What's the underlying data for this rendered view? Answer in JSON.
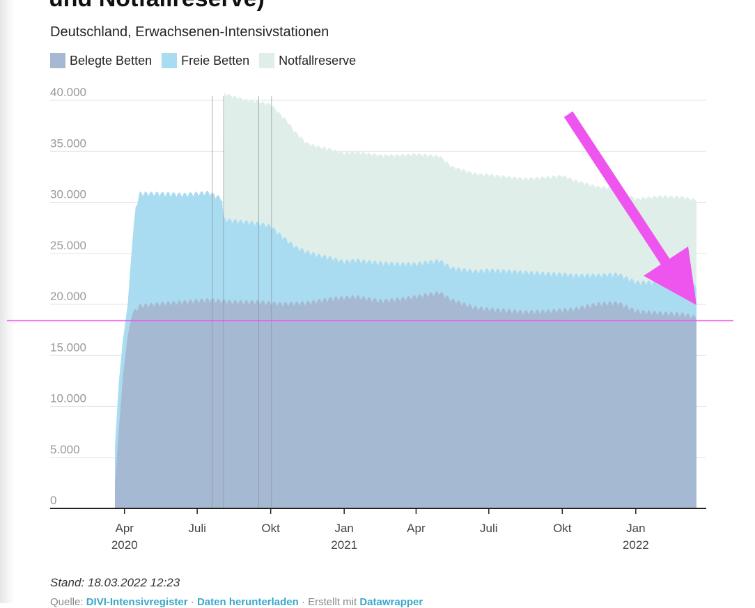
{
  "header": {
    "title": "und Notfallreserve)",
    "subtitle": "Deutschland, Erwachsenen-Intensivstationen"
  },
  "legend": {
    "belegt": "Belegte Betten",
    "frei": "Freie Betten",
    "reserve": "Notfallreserve"
  },
  "colors": {
    "belegt": "#a6b9d2",
    "frei": "#a9dcf1",
    "reserve": "#dfeee9",
    "annotation": "#ee55ee",
    "grid": "#e3e3e3",
    "event_line": "#8a9296"
  },
  "footer": {
    "stand": "Stand: 18.03.2022 12:23",
    "source_prefix": "Quelle: ",
    "source_link": "DIVI-Intensivregister",
    "sep": " · ",
    "download_link": "Daten herunterladen",
    "created_prefix": " · Erstellt mit ",
    "tool_link": "Datawrapper"
  },
  "chart_data": {
    "type": "area",
    "stacked": true,
    "xlabel": "",
    "ylabel": "",
    "x_range": [
      "2020-03-20",
      "2022-03-18"
    ],
    "ylim": [
      0,
      40000
    ],
    "y_ticks": [
      0,
      5000,
      10000,
      15000,
      20000,
      25000,
      30000,
      35000,
      40000
    ],
    "y_tick_labels": [
      "0",
      "5.000",
      "10.000",
      "15.000",
      "20.000",
      "25.000",
      "30.000",
      "35.000",
      "40.000"
    ],
    "x_ticks": [
      {
        "date": "2020-04-01",
        "label": "Apr",
        "year": "2020"
      },
      {
        "date": "2020-07-01",
        "label": "Juli",
        "year": ""
      },
      {
        "date": "2020-10-01",
        "label": "Okt",
        "year": ""
      },
      {
        "date": "2021-01-01",
        "label": "Jan",
        "year": "2021"
      },
      {
        "date": "2021-04-01",
        "label": "Apr",
        "year": ""
      },
      {
        "date": "2021-07-01",
        "label": "Juli",
        "year": ""
      },
      {
        "date": "2021-10-01",
        "label": "Okt",
        "year": ""
      },
      {
        "date": "2022-01-01",
        "label": "Jan",
        "year": "2022"
      }
    ],
    "event_lines": [
      "2020-07-20",
      "2020-08-03",
      "2020-09-16",
      "2020-10-02"
    ],
    "reference_line": 18400,
    "legend_position": "top-left",
    "grid": true,
    "series": [
      {
        "name": "Belegte Betten",
        "points": [
          [
            "2020-03-20",
            2500
          ],
          [
            "2020-03-25",
            8000
          ],
          [
            "2020-03-30",
            13000
          ],
          [
            "2020-04-05",
            17000
          ],
          [
            "2020-04-10",
            18800
          ],
          [
            "2020-04-20",
            19600
          ],
          [
            "2020-05-15",
            19800
          ],
          [
            "2020-06-15",
            20000
          ],
          [
            "2020-07-15",
            20200
          ],
          [
            "2020-08-15",
            20000
          ],
          [
            "2020-09-15",
            20000
          ],
          [
            "2020-10-15",
            19800
          ],
          [
            "2020-11-15",
            19900
          ],
          [
            "2020-12-15",
            20300
          ],
          [
            "2021-01-15",
            20500
          ],
          [
            "2021-02-15",
            20100
          ],
          [
            "2021-03-15",
            20300
          ],
          [
            "2021-04-15",
            20700
          ],
          [
            "2021-05-01",
            20900
          ],
          [
            "2021-05-15",
            20200
          ],
          [
            "2021-06-15",
            19400
          ],
          [
            "2021-07-15",
            19200
          ],
          [
            "2021-08-15",
            19000
          ],
          [
            "2021-09-15",
            19100
          ],
          [
            "2021-10-15",
            19300
          ],
          [
            "2021-11-15",
            19800
          ],
          [
            "2021-12-10",
            19900
          ],
          [
            "2022-01-01",
            19100
          ],
          [
            "2022-02-01",
            18900
          ],
          [
            "2022-03-01",
            18800
          ],
          [
            "2022-03-18",
            18500
          ]
        ]
      },
      {
        "name": "Freie Betten",
        "points": [
          [
            "2020-03-20",
            3500
          ],
          [
            "2020-03-25",
            4500
          ],
          [
            "2020-03-30",
            3500
          ],
          [
            "2020-04-05",
            3000
          ],
          [
            "2020-04-10",
            6500
          ],
          [
            "2020-04-15",
            10000
          ],
          [
            "2020-04-20",
            11000
          ],
          [
            "2020-05-15",
            10800
          ],
          [
            "2020-06-15",
            10500
          ],
          [
            "2020-07-15",
            10500
          ],
          [
            "2020-08-01",
            10000
          ],
          [
            "2020-08-03",
            8000
          ],
          [
            "2020-09-01",
            7800
          ],
          [
            "2020-10-01",
            7500
          ],
          [
            "2020-11-01",
            5500
          ],
          [
            "2020-12-01",
            4400
          ],
          [
            "2021-01-01",
            3500
          ],
          [
            "2021-02-15",
            3700
          ],
          [
            "2021-04-01",
            3200
          ],
          [
            "2021-05-15",
            3100
          ],
          [
            "2021-07-01",
            3800
          ],
          [
            "2021-08-15",
            3900
          ],
          [
            "2021-10-01",
            3500
          ],
          [
            "2021-11-15",
            2800
          ],
          [
            "2022-01-01",
            2800
          ],
          [
            "2022-02-01",
            3000
          ],
          [
            "2022-03-18",
            3000
          ]
        ]
      },
      {
        "name": "Notfallreserve",
        "points": [
          [
            "2020-08-03",
            0
          ],
          [
            "2020-08-04",
            12200
          ],
          [
            "2020-09-01",
            11800
          ],
          [
            "2020-10-01",
            11800
          ],
          [
            "2020-10-20",
            11600
          ],
          [
            "2020-11-15",
            10500
          ],
          [
            "2020-12-10",
            10500
          ],
          [
            "2021-01-01",
            10500
          ],
          [
            "2021-02-15",
            10400
          ],
          [
            "2021-04-01",
            10600
          ],
          [
            "2021-05-15",
            9800
          ],
          [
            "2021-07-01",
            9200
          ],
          [
            "2021-08-15",
            9000
          ],
          [
            "2021-10-01",
            9500
          ],
          [
            "2021-11-15",
            8500
          ],
          [
            "2022-01-01",
            8000
          ],
          [
            "2022-02-01",
            8300
          ],
          [
            "2022-03-18",
            8300
          ]
        ]
      }
    ]
  }
}
